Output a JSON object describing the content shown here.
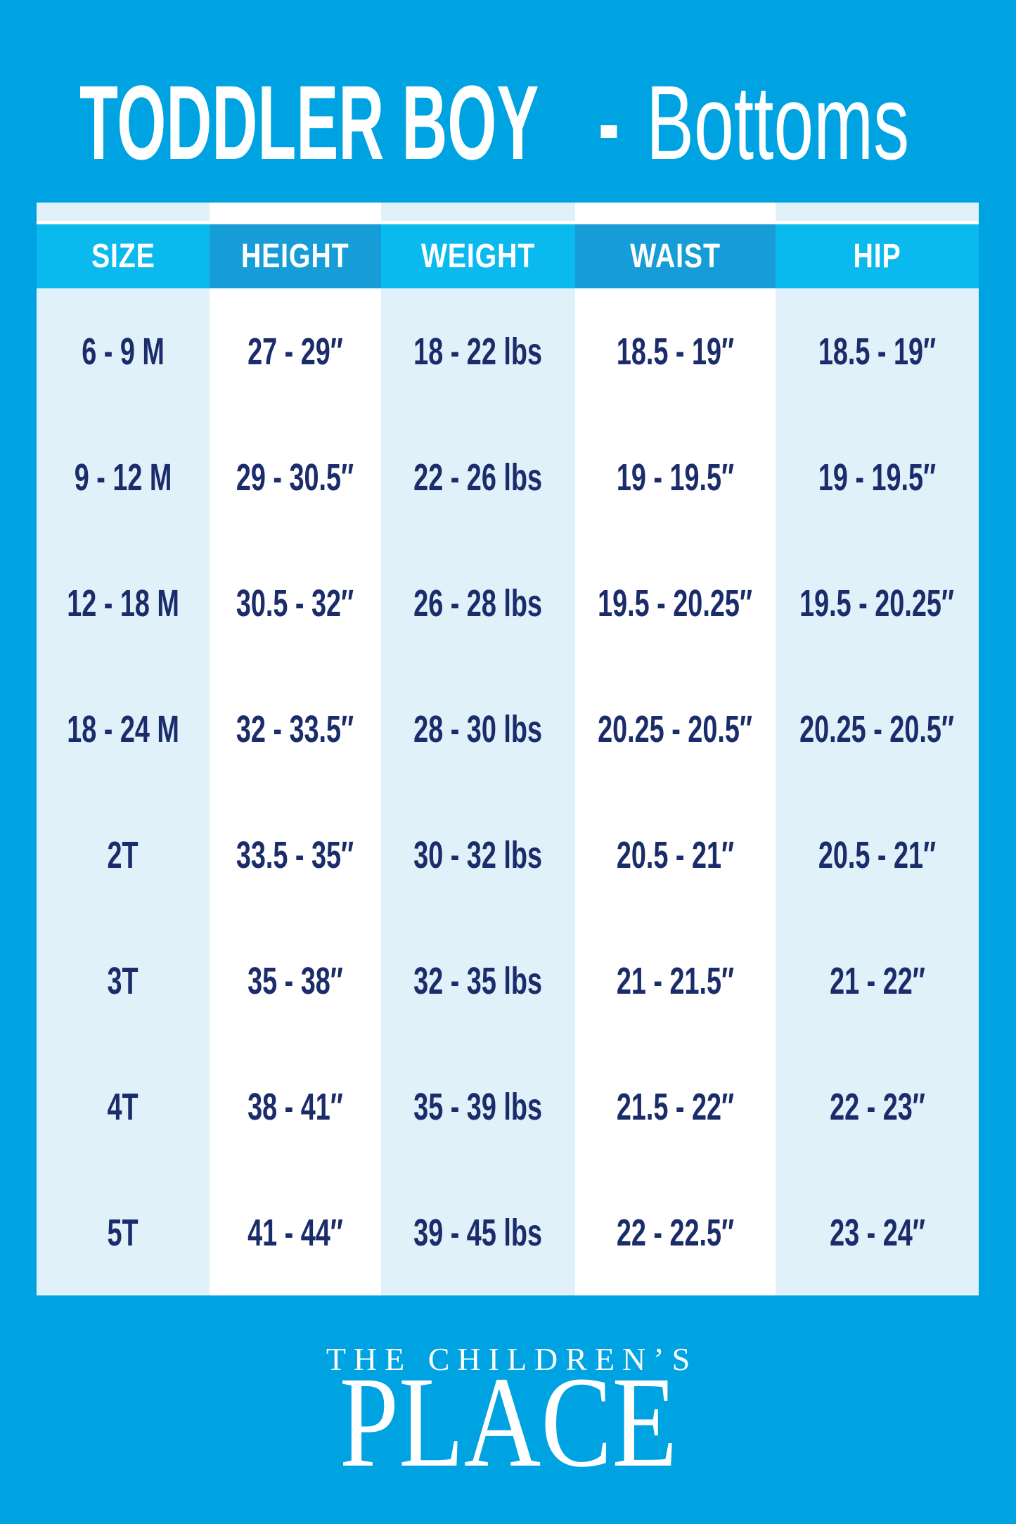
{
  "title": {
    "main": "TODDLER BOY",
    "separator": "-",
    "subtitle": "Bottoms"
  },
  "chart_data": {
    "type": "table",
    "title": "TODDLER BOY - Bottoms",
    "columns": [
      "SIZE",
      "HEIGHT",
      "WEIGHT",
      "WAIST",
      "HIP"
    ],
    "rows": [
      [
        "6 - 9 M",
        "27 - 29″",
        "18 - 22 lbs",
        "18.5 - 19″",
        "18.5 - 19″"
      ],
      [
        "9 - 12 M",
        "29 - 30.5″",
        "22 - 26 lbs",
        "19 - 19.5″",
        "19 - 19.5″"
      ],
      [
        "12 - 18 M",
        "30.5 - 32″",
        "26 - 28 lbs",
        "19.5 - 20.25″",
        "19.5 - 20.25″"
      ],
      [
        "18 - 24 M",
        "32 - 33.5″",
        "28 - 30 lbs",
        "20.25 - 20.5″",
        "20.25 - 20.5″"
      ],
      [
        "2T",
        "33.5 - 35″",
        "30 - 32 lbs",
        "20.5 - 21″",
        "20.5 - 21″"
      ],
      [
        "3T",
        "35 - 38″",
        "32 - 35 lbs",
        "21 - 21.5″",
        "21 - 22″"
      ],
      [
        "4T",
        "38 - 41″",
        "35 - 39 lbs",
        "21.5 - 22″",
        "22 - 23″"
      ],
      [
        "5T",
        "41 - 44″",
        "39 - 45 lbs",
        "22 - 22.5″",
        "23 - 24″"
      ]
    ]
  },
  "footer": {
    "brand_line1": "THE CHILDREN’S",
    "brand_line2": "PLACE"
  },
  "colors": {
    "background": "#00a3e2",
    "header_cell_light": "#0abaef",
    "header_cell_dark": "#169dd8",
    "column_stripe_light": "#e0f1fa",
    "column_stripe_white": "#ffffff",
    "body_text": "#1b2c6b",
    "header_text": "#ffffff"
  }
}
